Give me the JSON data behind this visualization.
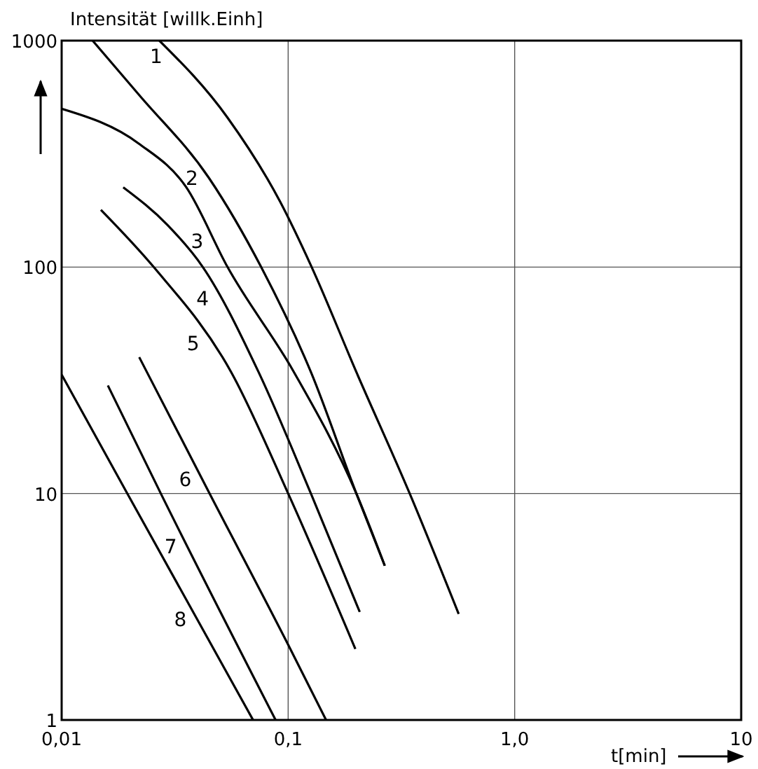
{
  "chart_data": {
    "type": "line",
    "xlabel": "t[min]",
    "ylabel": "Intensität [willk.Einh]",
    "log": "xy",
    "grid": true,
    "marker": "none",
    "line_style": "solid",
    "xlim": [
      0.01,
      10
    ],
    "ylim": [
      1,
      1000
    ],
    "xticks": [
      {
        "value": 0.01,
        "label": "0,01"
      },
      {
        "value": 0.1,
        "label": "0,1"
      },
      {
        "value": 1,
        "label": "1,0"
      },
      10
    ],
    "yticks": [
      1,
      10,
      100,
      1000
    ],
    "series": [
      {
        "name": "1",
        "color": "#000000",
        "x": [
          0.027,
          0.054,
          0.092,
          0.127,
          0.2,
          0.344,
          0.566
        ],
        "values": [
          1000,
          457,
          195,
          100,
          34.4,
          10,
          2.94
        ]
      },
      {
        "name": "2",
        "color": "#000000",
        "x": [
          0.0137,
          0.022,
          0.045,
          0.076,
          0.126,
          0.2,
          0.267
        ],
        "values": [
          1000,
          575,
          245,
          100,
          34.4,
          10,
          4.8
        ]
      },
      {
        "name": "3",
        "color": "#000000",
        "x": [
          0.01,
          0.022,
          0.0355,
          0.054,
          0.106,
          0.2,
          0.267
        ],
        "values": [
          500,
          350,
          225,
          100,
          34.4,
          10,
          4.8
        ]
      },
      {
        "name": "4",
        "color": "#000000",
        "x": [
          0.0187,
          0.0294,
          0.042,
          0.074,
          0.126,
          0.207
        ],
        "values": [
          225,
          153,
          100,
          34.4,
          10,
          3.0
        ]
      },
      {
        "name": "5",
        "color": "#000000",
        "x": [
          0.0149,
          0.0255,
          0.056,
          0.1,
          0.198
        ],
        "values": [
          179,
          100,
          34.4,
          10,
          2.06
        ]
      },
      {
        "name": "6",
        "color": "#000000",
        "x": [
          0.022,
          0.045,
          0.1,
          0.147
        ],
        "values": [
          40,
          10,
          2.15,
          1
        ]
      },
      {
        "name": "7",
        "color": "#000000",
        "x": [
          0.016,
          0.0274,
          0.088
        ],
        "values": [
          30,
          10,
          1
        ]
      },
      {
        "name": "8",
        "color": "#000000",
        "x": [
          0.01,
          0.0195,
          0.07
        ],
        "values": [
          33.5,
          10,
          1
        ]
      }
    ]
  }
}
